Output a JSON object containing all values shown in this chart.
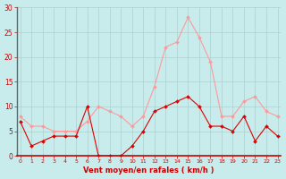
{
  "hours": [
    0,
    1,
    2,
    3,
    4,
    5,
    6,
    7,
    8,
    9,
    10,
    11,
    12,
    13,
    14,
    15,
    16,
    17,
    18,
    19,
    20,
    21,
    22,
    23
  ],
  "wind_avg": [
    7,
    2,
    3,
    4,
    4,
    4,
    10,
    0,
    0,
    0,
    2,
    5,
    9,
    10,
    11,
    12,
    10,
    6,
    6,
    5,
    8,
    3,
    6,
    4
  ],
  "wind_gust": [
    8,
    6,
    6,
    5,
    5,
    5,
    7,
    10,
    9,
    8,
    6,
    8,
    14,
    22,
    23,
    28,
    24,
    19,
    8,
    8,
    11,
    12,
    9,
    8
  ],
  "avg_color": "#dd0000",
  "gust_color": "#ff9999",
  "bg_color": "#c8ecec",
  "grid_color": "#aacccc",
  "xlabel": "Vent moyen/en rafales ( km/h )",
  "xlabel_color": "#cc0000",
  "tick_color": "#cc0000",
  "ylim": [
    0,
    30
  ],
  "yticks": [
    0,
    5,
    10,
    15,
    20,
    25,
    30
  ],
  "left_spine_color": "#666666",
  "bottom_spine_color": "#cc0000"
}
